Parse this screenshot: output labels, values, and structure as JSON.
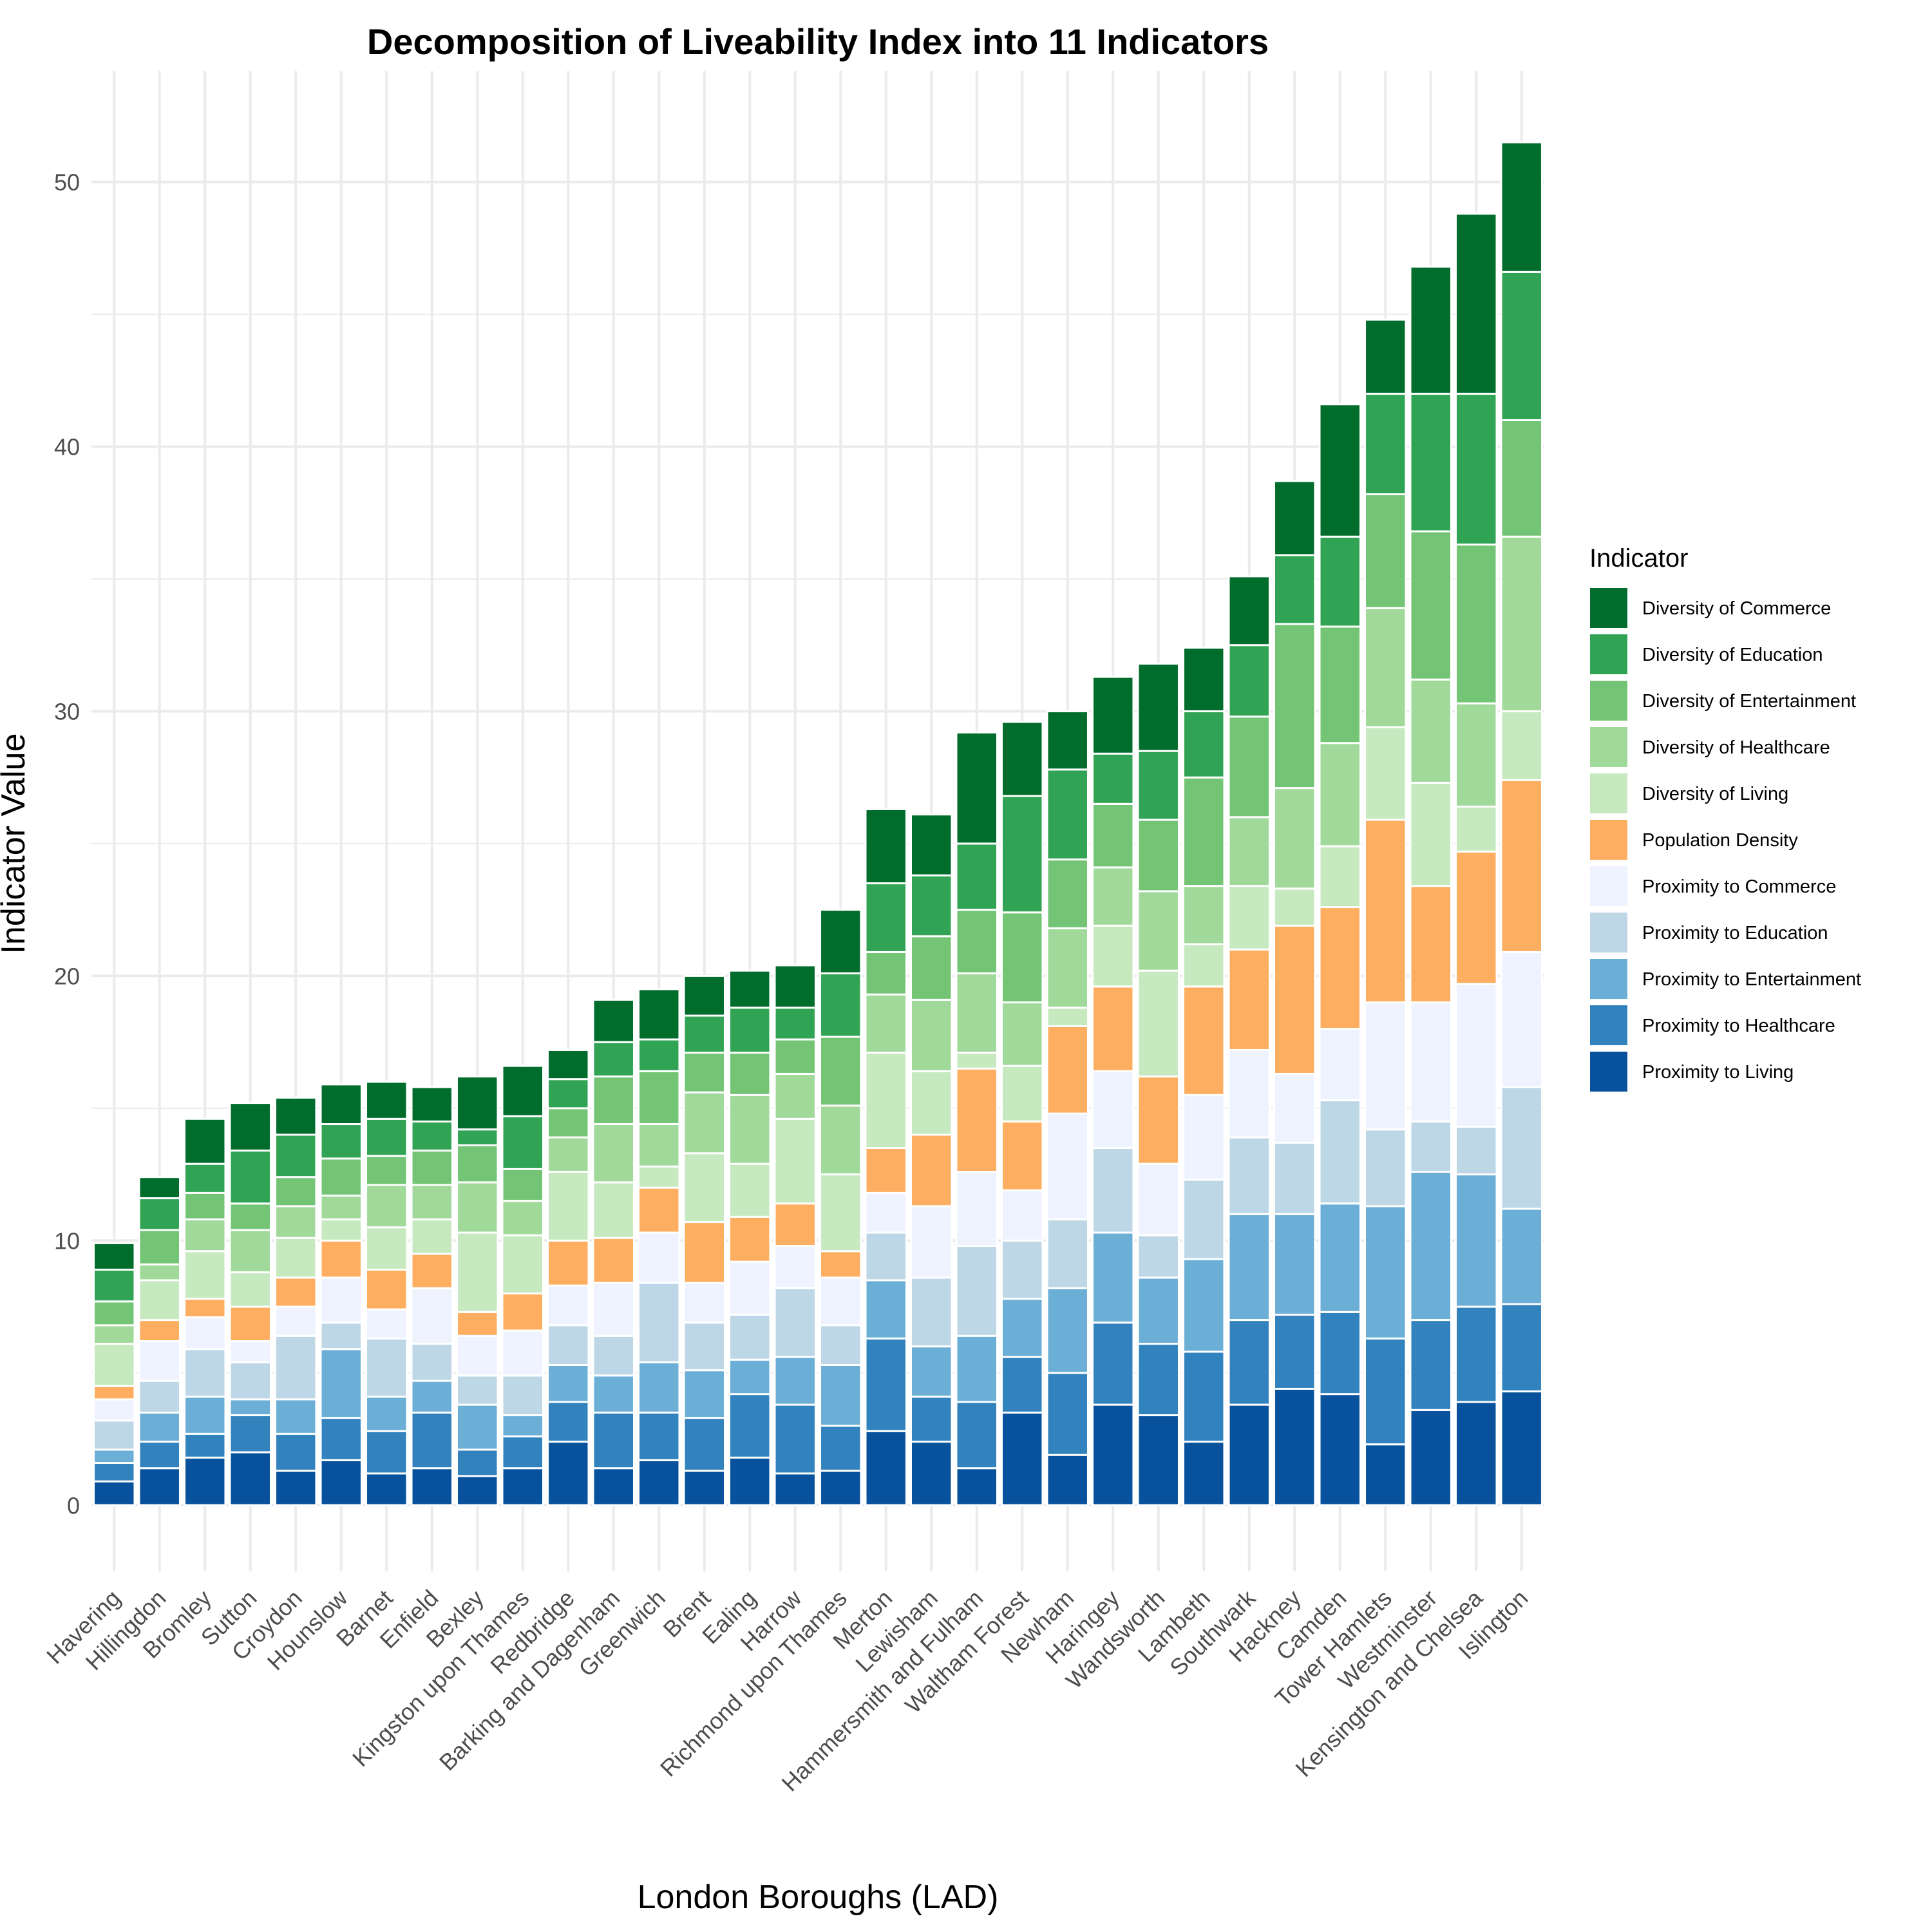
{
  "chart_data": {
    "type": "bar",
    "stacked": true,
    "title": "Decomposition of Liveability Index into 11 Indicators",
    "xlabel": "London Boroughs (LAD)",
    "ylabel": "Indicator Value",
    "ylim": [
      -2.5,
      54.2
    ],
    "yticks": [
      0,
      10,
      20,
      30,
      40,
      50
    ],
    "grid": true,
    "legend_title": "Indicator",
    "legend_position": "right",
    "categories": [
      "Havering",
      "Hillingdon",
      "Bromley",
      "Sutton",
      "Croydon",
      "Hounslow",
      "Barnet",
      "Enfield",
      "Bexley",
      "Kingston upon Thames",
      "Redbridge",
      "Barking and Dagenham",
      "Greenwich",
      "Brent",
      "Ealing",
      "Harrow",
      "Richmond upon Thames",
      "Merton",
      "Lewisham",
      "Hammersmith and Fulham",
      "Waltham Forest",
      "Newham",
      "Haringey",
      "Wandsworth",
      "Lambeth",
      "Southwark",
      "Hackney",
      "Camden",
      "Tower Hamlets",
      "Westminster",
      "Kensington and Chelsea",
      "Islington"
    ],
    "series": [
      {
        "name": "Proximity to Living",
        "color": "#08519c",
        "values": [
          0.9,
          1.4,
          1.8,
          2.0,
          1.3,
          1.7,
          1.2,
          1.4,
          1.1,
          1.4,
          2.4,
          1.4,
          1.7,
          1.3,
          1.8,
          1.2,
          1.3,
          2.8,
          2.4,
          1.4,
          3.5,
          1.9,
          3.8,
          3.4,
          2.4,
          3.8,
          4.4,
          4.2,
          2.3,
          3.6,
          3.9,
          4.3
        ]
      },
      {
        "name": "Proximity to Healthcare",
        "color": "#3182bd",
        "values": [
          0.7,
          1.0,
          0.9,
          1.4,
          1.4,
          1.6,
          1.6,
          2.1,
          1.0,
          1.2,
          1.5,
          2.1,
          1.8,
          2.0,
          2.4,
          2.6,
          1.7,
          3.5,
          1.7,
          2.5,
          2.1,
          3.1,
          3.1,
          2.7,
          3.4,
          3.2,
          2.8,
          3.1,
          4.0,
          3.4,
          3.6,
          3.3
        ]
      },
      {
        "name": "Proximity to Entertainment",
        "color": "#6baed6",
        "values": [
          0.5,
          1.1,
          1.4,
          0.6,
          1.3,
          2.6,
          1.3,
          1.2,
          1.7,
          0.8,
          1.4,
          1.4,
          1.9,
          1.8,
          1.3,
          1.8,
          2.3,
          2.2,
          1.9,
          2.5,
          2.2,
          3.2,
          3.4,
          2.5,
          3.5,
          4.0,
          3.8,
          4.1,
          5.0,
          5.6,
          5.0,
          3.6
        ]
      },
      {
        "name": "Proximity to Education",
        "color": "#bdd7e7",
        "values": [
          1.1,
          1.2,
          1.8,
          1.4,
          2.4,
          1.0,
          2.2,
          1.4,
          1.1,
          1.5,
          1.5,
          1.5,
          3.0,
          1.8,
          1.7,
          2.6,
          1.5,
          1.8,
          2.6,
          3.4,
          2.2,
          2.6,
          3.2,
          1.6,
          3.0,
          2.9,
          2.7,
          3.9,
          2.9,
          1.9,
          1.8,
          4.6
        ]
      },
      {
        "name": "Proximity to Commerce",
        "color": "#eff3ff",
        "values": [
          0.8,
          1.5,
          1.2,
          0.8,
          1.1,
          1.7,
          1.1,
          2.1,
          1.5,
          1.7,
          1.5,
          2.0,
          1.9,
          1.5,
          2.0,
          1.6,
          1.8,
          1.5,
          2.7,
          2.8,
          1.9,
          4.0,
          2.9,
          2.7,
          3.2,
          3.3,
          2.6,
          2.7,
          4.8,
          4.5,
          5.4,
          5.1
        ]
      },
      {
        "name": "Population Density",
        "color": "#fdae61",
        "values": [
          0.5,
          0.8,
          0.7,
          1.3,
          1.1,
          1.4,
          1.5,
          1.3,
          0.9,
          1.4,
          1.7,
          1.7,
          1.7,
          2.3,
          1.7,
          1.6,
          1.0,
          1.7,
          2.7,
          3.9,
          2.6,
          3.3,
          3.2,
          3.3,
          4.1,
          3.8,
          5.6,
          4.6,
          6.9,
          4.4,
          5.0,
          6.5
        ]
      },
      {
        "name": "Diversity of Living",
        "color": "#c7e9c0",
        "values": [
          1.6,
          1.5,
          1.8,
          1.3,
          1.5,
          0.8,
          1.6,
          1.3,
          3.0,
          2.2,
          2.6,
          2.1,
          0.8,
          2.6,
          2.0,
          3.2,
          2.9,
          3.6,
          2.4,
          0.6,
          2.1,
          0.7,
          2.3,
          4.0,
          1.6,
          2.4,
          1.4,
          2.3,
          3.5,
          3.9,
          1.7,
          2.6
        ]
      },
      {
        "name": "Diversity of Healthcare",
        "color": "#a1d99b",
        "values": [
          0.7,
          0.6,
          1.2,
          1.6,
          1.2,
          0.9,
          1.6,
          1.3,
          1.9,
          1.3,
          1.3,
          2.2,
          1.6,
          2.3,
          2.6,
          1.7,
          2.6,
          2.2,
          2.7,
          3.0,
          2.4,
          3.0,
          2.2,
          3.0,
          2.2,
          2.6,
          3.8,
          3.9,
          4.5,
          3.9,
          3.9,
          6.6
        ]
      },
      {
        "name": "Diversity of Entertainment",
        "color": "#74c476",
        "values": [
          0.9,
          1.3,
          1.0,
          1.0,
          1.1,
          1.4,
          1.1,
          1.3,
          1.4,
          1.2,
          1.1,
          1.8,
          2.0,
          1.5,
          1.6,
          1.3,
          2.6,
          1.6,
          2.4,
          2.4,
          3.4,
          2.6,
          2.4,
          2.7,
          4.1,
          3.8,
          6.2,
          4.4,
          4.3,
          5.6,
          6.0,
          4.4
        ]
      },
      {
        "name": "Diversity of Education",
        "color": "#31a354",
        "values": [
          1.2,
          1.2,
          1.1,
          2.0,
          1.6,
          1.3,
          1.4,
          1.1,
          0.6,
          2.0,
          1.1,
          1.3,
          1.2,
          1.4,
          1.7,
          1.2,
          2.4,
          2.6,
          2.3,
          2.5,
          4.4,
          3.4,
          1.9,
          2.6,
          2.5,
          2.7,
          2.6,
          3.4,
          3.8,
          5.2,
          5.7,
          5.6
        ]
      },
      {
        "name": "Diversity of Commerce",
        "color": "#006d2c",
        "values": [
          1.0,
          0.8,
          1.7,
          1.8,
          1.4,
          1.5,
          1.4,
          1.3,
          2.0,
          1.9,
          1.1,
          1.6,
          1.9,
          1.5,
          1.4,
          1.6,
          2.4,
          2.8,
          2.3,
          4.2,
          2.8,
          2.2,
          2.9,
          3.3,
          2.4,
          2.6,
          2.8,
          5.0,
          2.8,
          4.8,
          6.8,
          4.9
        ]
      }
    ]
  }
}
